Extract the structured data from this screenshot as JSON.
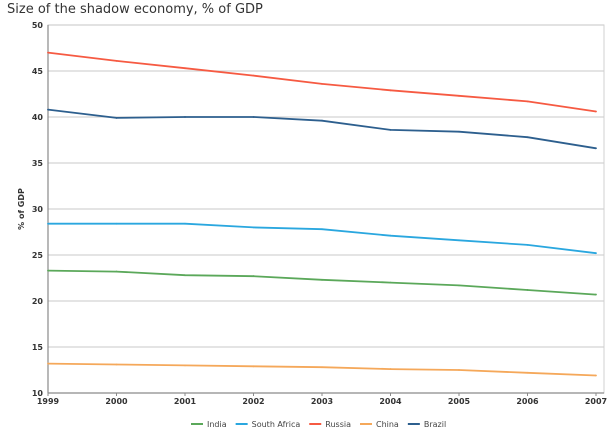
{
  "chart_data": {
    "type": "line",
    "title": "Size of the shadow economy, % of GDP",
    "xlabel": "",
    "ylabel": "% of GDP",
    "x": [
      1999,
      2000,
      2001,
      2002,
      2003,
      2004,
      2005,
      2006,
      2007
    ],
    "x_tick_labels": [
      "1999",
      "2000",
      "2001",
      "2002",
      "2003",
      "2004",
      "2005",
      "2006",
      "2007"
    ],
    "ylim": [
      10,
      50
    ],
    "y_ticks": [
      10,
      15,
      20,
      25,
      30,
      35,
      40,
      45,
      50
    ],
    "y_tick_labels": [
      "10",
      "15",
      "20",
      "25",
      "30",
      "35",
      "40",
      "45",
      "50"
    ],
    "grid": true,
    "legend_position": "bottom-center",
    "series": [
      {
        "name": "India",
        "color": "#5ba85a",
        "values": [
          23.3,
          23.2,
          22.8,
          22.7,
          22.3,
          22.0,
          21.7,
          21.2,
          20.7
        ]
      },
      {
        "name": "South Africa",
        "color": "#2aa7df",
        "values": [
          28.4,
          28.4,
          28.4,
          28.0,
          27.8,
          27.1,
          26.6,
          26.1,
          25.2
        ]
      },
      {
        "name": "Russia",
        "color": "#f65a42",
        "values": [
          47.0,
          46.1,
          45.3,
          44.5,
          43.6,
          42.9,
          42.3,
          41.7,
          40.6
        ]
      },
      {
        "name": "China",
        "color": "#f5a85a",
        "values": [
          13.2,
          13.1,
          13.0,
          12.9,
          12.8,
          12.6,
          12.5,
          12.2,
          11.9
        ]
      },
      {
        "name": "Brazil",
        "color": "#2d5f8e",
        "values": [
          40.8,
          39.9,
          40.0,
          40.0,
          39.6,
          38.6,
          38.4,
          37.8,
          36.6
        ]
      }
    ]
  }
}
